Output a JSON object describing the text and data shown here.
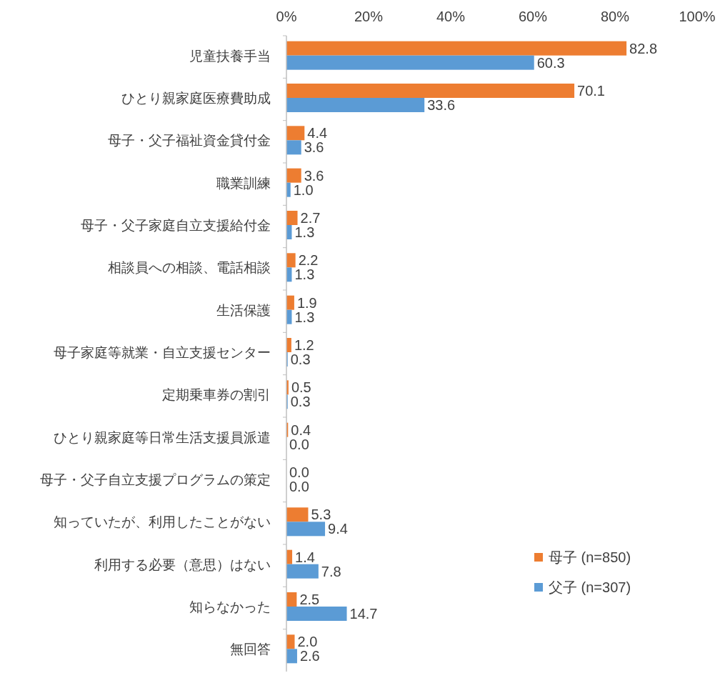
{
  "chart_data": {
    "type": "bar",
    "orientation": "horizontal",
    "categories": [
      "児童扶養手当",
      "ひとり親家庭医療費助成",
      "母子・父子福祉資金貸付金",
      "職業訓練",
      "母子・父子家庭自立支援給付金",
      "相談員への相談、電話相談",
      "生活保護",
      "母子家庭等就業・自立支援センター",
      "定期乗車券の割引",
      "ひとり親家庭等日常生活支援員派遣",
      "母子・父子自立支援プログラムの策定",
      "知っていたが、利用したことがない",
      "利用する必要（意思）はない",
      "知らなかった",
      "無回答"
    ],
    "series": [
      {
        "name": "母子 (n=850)",
        "color": "#ed7d31",
        "values": [
          82.8,
          70.1,
          4.4,
          3.6,
          2.7,
          2.2,
          1.9,
          1.2,
          0.5,
          0.4,
          0.0,
          5.3,
          1.4,
          2.5,
          2.0
        ],
        "value_labels": [
          "82.8",
          "70.1",
          "4.4",
          "3.6",
          "2.7",
          "2.2",
          "1.9",
          "1.2",
          "0.5",
          "0.4",
          "0.0",
          "5.3",
          "1.4",
          "2.5",
          "2.0"
        ]
      },
      {
        "name": "父子 (n=307)",
        "color": "#5b9bd5",
        "values": [
          60.3,
          33.6,
          3.6,
          1.0,
          1.3,
          1.3,
          1.3,
          0.3,
          0.3,
          0.0,
          0.0,
          9.4,
          7.8,
          14.7,
          2.6
        ],
        "value_labels": [
          "60.3",
          "33.6",
          "3.6",
          "1.0",
          "1.3",
          "1.3",
          "1.3",
          "0.3",
          "0.3",
          "0.0",
          "0.0",
          "9.4",
          "7.8",
          "14.7",
          "2.6"
        ]
      }
    ],
    "xlim": [
      0,
      100
    ],
    "xticks": [
      {
        "value": 0,
        "label": "0%"
      },
      {
        "value": 20,
        "label": "20%"
      },
      {
        "value": 40,
        "label": "40%"
      },
      {
        "value": 60,
        "label": "60%"
      },
      {
        "value": 80,
        "label": "80%"
      },
      {
        "value": 100,
        "label": "100%"
      }
    ],
    "grid": false,
    "legend": "bottom right"
  }
}
